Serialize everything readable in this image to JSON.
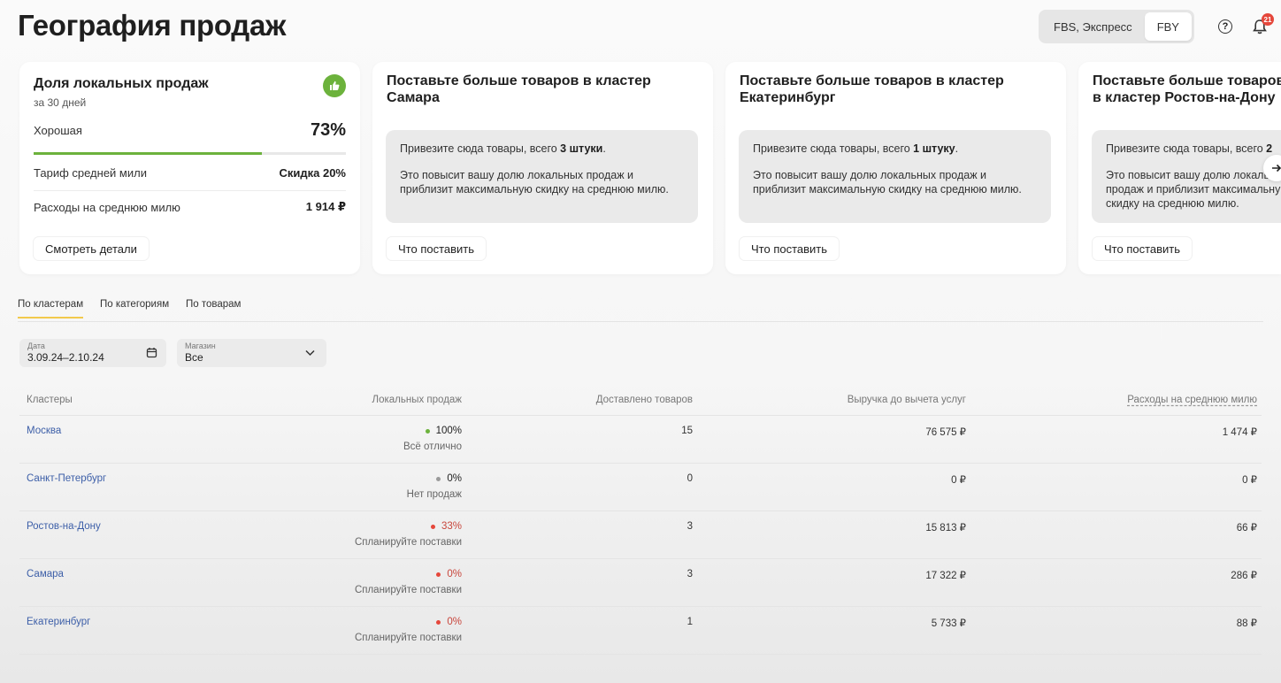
{
  "header": {
    "title": "География продаж",
    "scheme_options": [
      "FBS, Экспресс",
      "FBY"
    ],
    "notifications_count": "21"
  },
  "share_card": {
    "title": "Доля локальных продаж",
    "period": "за 30 дней",
    "rating_label": "Хорошая",
    "percent": "73%",
    "progress": 0.73,
    "tariff_label": "Тариф средней мили",
    "tariff_value": "Скидка 20%",
    "expenses_label": "Расходы на среднюю милю",
    "expenses_value": "1 914 ₽",
    "button": "Смотреть детали"
  },
  "cluster_cards": [
    {
      "title": "Поставьте больше товаров в кластер Самара",
      "lead": "Привезите сюда товары, всего ",
      "qty": "3 штуки",
      "lead_end": ".",
      "note": "Это повысит вашу долю локальных продаж и приблизит максимальную скидку на среднюю милю.",
      "button": "Что поставить"
    },
    {
      "title": "Поставьте больше товаров в кластер Екатеринбург",
      "lead": "Привезите сюда товары, всего ",
      "qty": "1 штуку",
      "lead_end": ".",
      "note": "Это повысит вашу долю локальных продаж и приблизит максимальную скидку на среднюю милю.",
      "button": "Что поставить"
    },
    {
      "title": "Поставьте больше товаров в кластер Ростов-на-Дону",
      "lead": "Привезите сюда товары, всего ",
      "qty": "2",
      "lead_end": "",
      "note": "Это повысит вашу долю локальных продаж и приблизит максимальную скидку на среднюю милю.",
      "button": "Что поставить"
    }
  ],
  "tabs": [
    "По кластерам",
    "По категориям",
    "По товарам"
  ],
  "filters": {
    "date_label": "Дата",
    "date_value": "3.09.24–2.10.24",
    "store_label": "Магазин",
    "store_value": "Все"
  },
  "table": {
    "headers": [
      "Кластеры",
      "Локальных продаж",
      "Доставлено товаров",
      "Выручка до вычета услуг",
      "Расходы на среднюю милю"
    ],
    "rows": [
      {
        "city": "Москва",
        "percent": "100%",
        "status": "Всё отлично",
        "color": "#6cb23c",
        "delivered": "15",
        "revenue": "76 575 ₽",
        "expenses": "1 474 ₽"
      },
      {
        "city": "Санкт-Петербург",
        "percent": "0%",
        "status": "Нет продаж",
        "color": "#9a9a9a",
        "delivered": "0",
        "revenue": "0 ₽",
        "expenses": "0 ₽"
      },
      {
        "city": "Ростов-на-Дону",
        "percent": "33%",
        "status": "Спланируйте поставки",
        "color": "#e5473b",
        "delivered": "3",
        "revenue": "15 813 ₽",
        "expenses": "66 ₽"
      },
      {
        "city": "Самара",
        "percent": "0%",
        "status": "Спланируйте поставки",
        "color": "#e5473b",
        "delivered": "3",
        "revenue": "17 322 ₽",
        "expenses": "286 ₽"
      },
      {
        "city": "Екатеринбург",
        "percent": "0%",
        "status": "Спланируйте поставки",
        "color": "#e5473b",
        "delivered": "1",
        "revenue": "5 733 ₽",
        "expenses": "88 ₽"
      }
    ]
  }
}
